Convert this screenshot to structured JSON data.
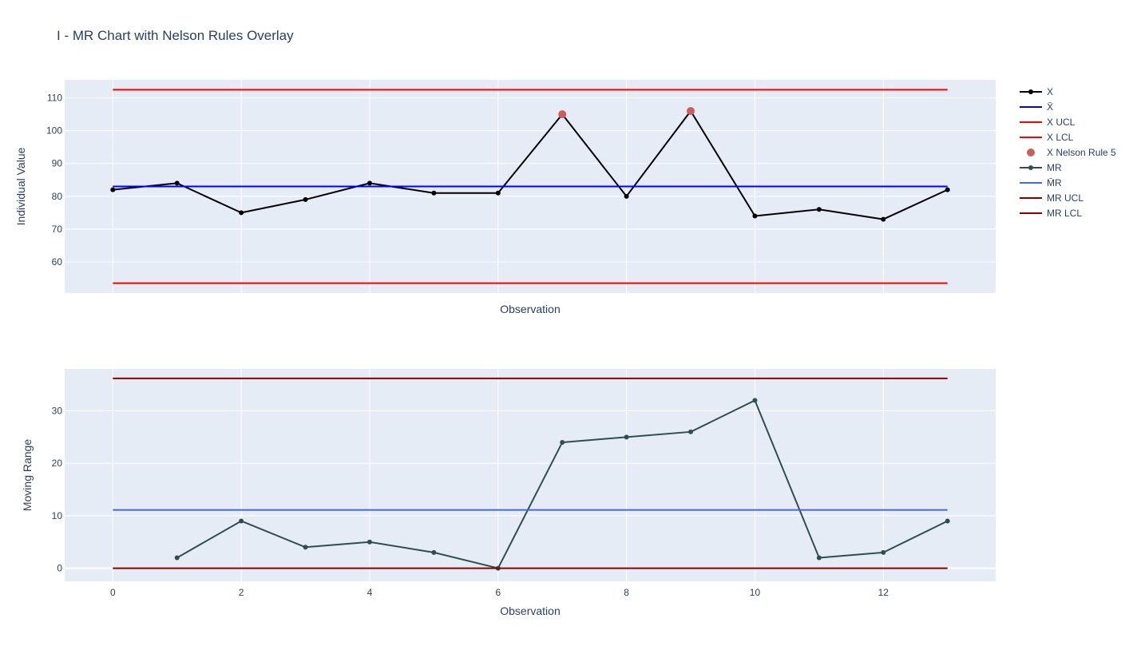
{
  "chart_data": {
    "title": "I - MR Chart with Nelson Rules Overlay",
    "type": "line",
    "grid": true,
    "legend_position": "right",
    "x": [
      0,
      1,
      2,
      3,
      4,
      5,
      6,
      7,
      8,
      9,
      10,
      11,
      12,
      13
    ],
    "x_ticks": [
      0,
      2,
      4,
      6,
      8,
      10,
      12
    ],
    "xlim": [
      -0.75,
      13.75
    ],
    "legend": [
      {
        "label": "X",
        "color": "#000000",
        "symbol": "line-marker"
      },
      {
        "label": "X̄",
        "color": "#0000ff",
        "symbol": "line"
      },
      {
        "label": "X UCL",
        "color": "#ff0000",
        "symbol": "line"
      },
      {
        "label": "X LCL",
        "color": "#ff0000",
        "symbol": "line"
      },
      {
        "label": "X Nelson Rule 5",
        "color": "#cd5c5c",
        "symbol": "marker"
      },
      {
        "label": "MR",
        "color": "#2f4f4f",
        "symbol": "line-marker"
      },
      {
        "label": "M̄R",
        "color": "#4169e1",
        "symbol": "line"
      },
      {
        "label": "MR UCL",
        "color": "#8b0000",
        "symbol": "line"
      },
      {
        "label": "MR LCL",
        "color": "#8b0000",
        "symbol": "line"
      }
    ],
    "panels": [
      {
        "xlabel": "Observation",
        "ylabel": "Individual Value",
        "ylim": [
          50.5,
          115.5
        ],
        "y_ticks": [
          60,
          70,
          80,
          90,
          100,
          110
        ],
        "show_x_ticks": false,
        "series": [
          {
            "name": "X",
            "color": "#000000",
            "mode": "lines+markers",
            "x": [
              0,
              1,
              2,
              3,
              4,
              5,
              6,
              7,
              8,
              9,
              10,
              11,
              12,
              13
            ],
            "y": [
              82,
              84,
              75,
              79,
              84,
              81,
              81,
              105,
              80,
              106,
              74,
              76,
              73,
              82
            ]
          },
          {
            "name": "X̄",
            "color": "#0000ff",
            "mode": "lines",
            "x": [
              0,
              13
            ],
            "y": [
              83,
              83
            ]
          },
          {
            "name": "X UCL",
            "color": "#ff0000",
            "mode": "lines",
            "x": [
              0,
              13
            ],
            "y": [
              112.5,
              112.5
            ]
          },
          {
            "name": "X LCL",
            "color": "#ff0000",
            "mode": "lines",
            "x": [
              0,
              13
            ],
            "y": [
              53.5,
              53.5
            ]
          },
          {
            "name": "X Nelson Rule 5",
            "color": "#cd5c5c",
            "mode": "markers",
            "x": [
              7,
              9
            ],
            "y": [
              105,
              106
            ]
          }
        ]
      },
      {
        "xlabel": "Observation",
        "ylabel": "Moving Range",
        "ylim": [
          -2.5,
          38
        ],
        "y_ticks": [
          0,
          10,
          20,
          30
        ],
        "show_x_ticks": true,
        "series": [
          {
            "name": "MR",
            "color": "#2f4f4f",
            "mode": "lines+markers",
            "x": [
              1,
              2,
              3,
              4,
              5,
              6,
              7,
              8,
              9,
              10,
              11,
              12,
              13
            ],
            "y": [
              2,
              9,
              4,
              5,
              3,
              0,
              24,
              25,
              26,
              32,
              2,
              3,
              9
            ]
          },
          {
            "name": "M̄R",
            "color": "#4169e1",
            "mode": "lines",
            "x": [
              0,
              13
            ],
            "y": [
              11.1,
              11.1
            ]
          },
          {
            "name": "MR UCL",
            "color": "#8b0000",
            "mode": "lines",
            "x": [
              0,
              13
            ],
            "y": [
              36.2,
              36.2
            ]
          },
          {
            "name": "MR LCL",
            "color": "#8b0000",
            "mode": "lines",
            "x": [
              0,
              13
            ],
            "y": [
              0,
              0
            ]
          }
        ]
      }
    ]
  }
}
